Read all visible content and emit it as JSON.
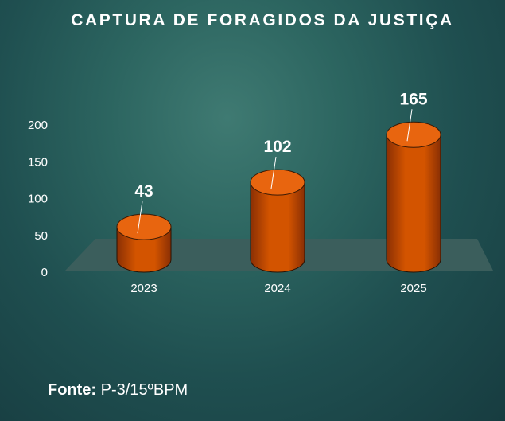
{
  "chart_data": {
    "type": "bar",
    "title": "CAPTURA DE FORAGIDOS DA JUSTIÇA",
    "categories": [
      "2023",
      "2024",
      "2025"
    ],
    "values": [
      43,
      102,
      165
    ],
    "data_labels": [
      "43",
      "102",
      "165"
    ],
    "yticks": [
      "0",
      "50",
      "100",
      "150",
      "200"
    ],
    "ylim": [
      0,
      200
    ],
    "xlabel": "",
    "ylabel": "",
    "grid": false,
    "bar_style": "3d-cylinder",
    "colors": {
      "bar": "#d35400",
      "bar_dark": "#8a2f04",
      "bar_top": "#e8650f",
      "floor": "#3b5e5c",
      "text": "#ffffff"
    }
  },
  "footer": {
    "source_label": "Fonte:",
    "source_value": " P-3/15ºBPM"
  }
}
